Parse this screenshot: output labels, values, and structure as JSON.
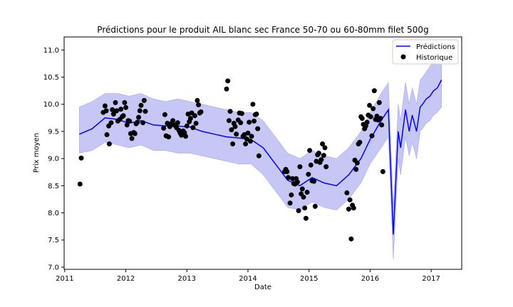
{
  "chart_data": {
    "type": "line",
    "title": "Prédictions pour le produit AIL blanc sec France 50-70 ou 60-80mm filet 500g",
    "xlabel": "Date",
    "ylabel": "Prix moyen",
    "xlim": [
      2010.99,
      2017.5
    ],
    "ylim": [
      6.96,
      11.24
    ],
    "x_ticks": [
      "2011",
      "2012",
      "2013",
      "2014",
      "2015",
      "2016",
      "2017"
    ],
    "y_ticks": [
      "7.0",
      "7.5",
      "8.0",
      "8.5",
      "9.0",
      "9.5",
      "10.0",
      "10.5",
      "11.0"
    ],
    "legend_position": "top-right",
    "colors": {
      "prediction": "#0000ff",
      "band": "#9999ee",
      "history": "#000000"
    },
    "series": [
      {
        "name": "Prédictions",
        "type": "line",
        "x": [
          2011.24,
          2011.45,
          2011.66,
          2011.87,
          2012.05,
          2012.25,
          2012.45,
          2012.65,
          2012.85,
          2013.05,
          2013.25,
          2013.45,
          2013.65,
          2013.85,
          2014.05,
          2014.25,
          2014.45,
          2014.65,
          2014.85,
          2015.05,
          2015.25,
          2015.45,
          2015.65,
          2015.85,
          2016.0,
          2016.18,
          2016.3,
          2016.38,
          2016.46,
          2016.5,
          2016.58,
          2016.64,
          2016.69,
          2016.76,
          2016.82,
          2016.86,
          2016.92,
          2016.98,
          2017.04,
          2017.1,
          2017.17
        ],
        "y": [
          9.45,
          9.55,
          9.75,
          9.72,
          9.65,
          9.7,
          9.62,
          9.6,
          9.6,
          9.58,
          9.5,
          9.45,
          9.4,
          9.38,
          9.35,
          9.2,
          8.9,
          8.6,
          8.5,
          8.65,
          8.55,
          8.5,
          8.7,
          9.0,
          9.35,
          9.7,
          9.9,
          7.6,
          9.5,
          9.2,
          9.9,
          9.5,
          9.8,
          9.5,
          9.95,
          10.0,
          10.1,
          10.15,
          10.25,
          10.3,
          10.45
        ]
      },
      {
        "name": "band-upper",
        "type": "band",
        "x": [
          2011.24,
          2011.45,
          2011.66,
          2011.87,
          2012.05,
          2012.25,
          2012.45,
          2012.65,
          2012.85,
          2013.05,
          2013.25,
          2013.45,
          2013.65,
          2013.85,
          2014.05,
          2014.25,
          2014.45,
          2014.65,
          2014.85,
          2015.05,
          2015.25,
          2015.45,
          2015.65,
          2015.85,
          2016.0,
          2016.18,
          2016.3,
          2016.38,
          2016.46,
          2016.5,
          2016.58,
          2016.64,
          2016.69,
          2016.76,
          2016.82,
          2016.86,
          2016.92,
          2016.98,
          2017.04,
          2017.1,
          2017.17
        ],
        "y": [
          9.95,
          10.05,
          10.2,
          10.2,
          10.15,
          10.2,
          10.1,
          10.05,
          10.1,
          10.05,
          10.0,
          9.95,
          9.9,
          9.85,
          9.85,
          9.7,
          9.4,
          9.1,
          9.0,
          9.15,
          9.05,
          9.0,
          9.2,
          9.5,
          9.85,
          10.2,
          10.4,
          8.1,
          10.0,
          9.7,
          10.4,
          10.0,
          10.3,
          10.0,
          10.45,
          10.5,
          10.6,
          10.7,
          10.8,
          10.85,
          10.95
        ]
      },
      {
        "name": "band-lower",
        "type": "band",
        "x": [
          2011.24,
          2011.45,
          2011.66,
          2011.87,
          2012.05,
          2012.25,
          2012.45,
          2012.65,
          2012.85,
          2013.05,
          2013.25,
          2013.45,
          2013.65,
          2013.85,
          2014.05,
          2014.25,
          2014.45,
          2014.65,
          2014.85,
          2015.05,
          2015.25,
          2015.45,
          2015.65,
          2015.85,
          2016.0,
          2016.18,
          2016.3,
          2016.38,
          2016.46,
          2016.5,
          2016.58,
          2016.64,
          2016.69,
          2016.76,
          2016.82,
          2016.86,
          2016.92,
          2016.98,
          2017.04,
          2017.1,
          2017.17
        ],
        "y": [
          9.1,
          9.15,
          9.3,
          9.25,
          9.2,
          9.25,
          9.15,
          9.15,
          9.1,
          9.1,
          9.05,
          9.0,
          8.95,
          8.9,
          8.9,
          8.7,
          8.4,
          8.1,
          8.05,
          8.2,
          8.1,
          8.05,
          8.25,
          8.55,
          8.9,
          9.2,
          9.4,
          7.15,
          9.0,
          8.7,
          9.4,
          9.05,
          9.3,
          9.0,
          9.5,
          9.55,
          9.65,
          9.7,
          9.8,
          9.85,
          9.95
        ]
      },
      {
        "name": "Historique",
        "type": "scatter",
        "points": [
          [
            2011.25,
            8.53
          ],
          [
            2011.27,
            9.01
          ],
          [
            2011.63,
            9.85
          ],
          [
            2011.66,
            9.97
          ],
          [
            2011.68,
            9.88
          ],
          [
            2011.69,
            9.44
          ],
          [
            2011.72,
            9.6
          ],
          [
            2011.73,
            9.27
          ],
          [
            2011.76,
            9.66
          ],
          [
            2011.78,
            9.9
          ],
          [
            2011.8,
            9.82
          ],
          [
            2011.83,
            10.03
          ],
          [
            2011.85,
            9.88
          ],
          [
            2011.87,
            9.69
          ],
          [
            2011.9,
            9.72
          ],
          [
            2011.92,
            9.91
          ],
          [
            2011.94,
            9.77
          ],
          [
            2011.96,
            9.79
          ],
          [
            2011.98,
            10.03
          ],
          [
            2012.0,
            9.94
          ],
          [
            2012.02,
            9.62
          ],
          [
            2012.04,
            9.7
          ],
          [
            2012.06,
            9.69
          ],
          [
            2012.08,
            9.46
          ],
          [
            2012.1,
            9.37
          ],
          [
            2012.13,
            9.48
          ],
          [
            2012.15,
            9.46
          ],
          [
            2012.17,
            9.64
          ],
          [
            2012.19,
            9.67
          ],
          [
            2012.21,
            9.76
          ],
          [
            2012.23,
            9.88
          ],
          [
            2012.25,
            9.98
          ],
          [
            2012.28,
            9.66
          ],
          [
            2012.3,
            10.07
          ],
          [
            2012.32,
            9.87
          ],
          [
            2012.62,
            9.56
          ],
          [
            2012.64,
            9.81
          ],
          [
            2012.66,
            9.42
          ],
          [
            2012.68,
            9.65
          ],
          [
            2012.7,
            9.4
          ],
          [
            2012.72,
            9.59
          ],
          [
            2012.75,
            9.65
          ],
          [
            2012.77,
            9.7
          ],
          [
            2012.79,
            9.62
          ],
          [
            2012.81,
            9.61
          ],
          [
            2012.83,
            9.57
          ],
          [
            2012.85,
            9.66
          ],
          [
            2012.87,
            9.52
          ],
          [
            2012.89,
            9.47
          ],
          [
            2012.91,
            9.43
          ],
          [
            2012.94,
            9.51
          ],
          [
            2012.96,
            9.48
          ],
          [
            2012.98,
            9.41
          ],
          [
            2013.0,
            9.6
          ],
          [
            2013.02,
            9.82
          ],
          [
            2013.04,
            9.68
          ],
          [
            2013.06,
            9.74
          ],
          [
            2013.08,
            9.84
          ],
          [
            2013.1,
            9.57
          ],
          [
            2013.13,
            9.79
          ],
          [
            2013.15,
            9.65
          ],
          [
            2013.17,
            10.07
          ],
          [
            2013.19,
            9.99
          ],
          [
            2013.21,
            9.84
          ],
          [
            2013.23,
            9.86
          ],
          [
            2013.65,
            10.28
          ],
          [
            2013.67,
            10.43
          ],
          [
            2013.69,
            9.7
          ],
          [
            2013.71,
            9.87
          ],
          [
            2013.73,
            9.53
          ],
          [
            2013.75,
            9.27
          ],
          [
            2013.77,
            9.65
          ],
          [
            2013.79,
            9.59
          ],
          [
            2013.81,
            9.45
          ],
          [
            2013.84,
            9.71
          ],
          [
            2013.86,
            9.84
          ],
          [
            2013.88,
            9.66
          ],
          [
            2013.9,
            9.83
          ],
          [
            2013.92,
            9.41
          ],
          [
            2013.94,
            9.44
          ],
          [
            2013.96,
            9.27
          ],
          [
            2013.98,
            9.36
          ],
          [
            2014.0,
            9.47
          ],
          [
            2014.02,
            9.67
          ],
          [
            2014.04,
            9.32
          ],
          [
            2014.06,
            9.41
          ],
          [
            2014.08,
            10.0
          ],
          [
            2014.1,
            9.69
          ],
          [
            2014.12,
            9.81
          ],
          [
            2014.14,
            9.82
          ],
          [
            2014.16,
            9.55
          ],
          [
            2014.18,
            9.05
          ],
          [
            2014.6,
            8.76
          ],
          [
            2014.62,
            8.8
          ],
          [
            2014.64,
            8.76
          ],
          [
            2014.66,
            8.65
          ],
          [
            2014.69,
            8.18
          ],
          [
            2014.71,
            8.33
          ],
          [
            2014.73,
            8.63
          ],
          [
            2014.75,
            8.54
          ],
          [
            2014.77,
            8.53
          ],
          [
            2014.79,
            8.63
          ],
          [
            2014.81,
            8.57
          ],
          [
            2014.83,
            8.04
          ],
          [
            2014.85,
            8.85
          ],
          [
            2014.87,
            8.35
          ],
          [
            2014.89,
            8.44
          ],
          [
            2014.91,
            8.29
          ],
          [
            2014.93,
            8.09
          ],
          [
            2014.95,
            7.9
          ],
          [
            2014.97,
            8.38
          ],
          [
            2014.99,
            8.71
          ],
          [
            2015.01,
            9.15
          ],
          [
            2015.03,
            8.88
          ],
          [
            2015.05,
            8.59
          ],
          [
            2015.08,
            8.58
          ],
          [
            2015.1,
            8.12
          ],
          [
            2015.12,
            8.95
          ],
          [
            2015.14,
            9.07
          ],
          [
            2015.16,
            9.1
          ],
          [
            2015.18,
            8.93
          ],
          [
            2015.2,
            8.98
          ],
          [
            2015.22,
            9.27
          ],
          [
            2015.24,
            9.06
          ],
          [
            2015.26,
            9.2
          ],
          [
            2015.28,
            8.85
          ],
          [
            2015.62,
            8.37
          ],
          [
            2015.65,
            8.07
          ],
          [
            2015.67,
            8.24
          ],
          [
            2015.69,
            7.52
          ],
          [
            2015.71,
            8.14
          ],
          [
            2015.73,
            8.09
          ],
          [
            2015.75,
            8.97
          ],
          [
            2015.77,
            8.8
          ],
          [
            2015.79,
            8.92
          ],
          [
            2015.81,
            9.27
          ],
          [
            2015.83,
            9.3
          ],
          [
            2015.85,
            9.77
          ],
          [
            2015.87,
            9.74
          ],
          [
            2015.89,
            9.63
          ],
          [
            2015.91,
            9.55
          ],
          [
            2015.93,
            9.6
          ],
          [
            2015.95,
            9.67
          ],
          [
            2015.97,
            9.8
          ],
          [
            2015.99,
            9.98
          ],
          [
            2016.01,
            9.77
          ],
          [
            2016.03,
            9.42
          ],
          [
            2016.05,
            9.92
          ],
          [
            2016.07,
            10.25
          ],
          [
            2016.09,
            9.72
          ],
          [
            2016.11,
            9.78
          ],
          [
            2016.13,
            9.71
          ],
          [
            2016.15,
            10.03
          ],
          [
            2016.17,
            9.74
          ],
          [
            2016.19,
            9.62
          ],
          [
            2016.21,
            8.76
          ]
        ]
      }
    ]
  }
}
